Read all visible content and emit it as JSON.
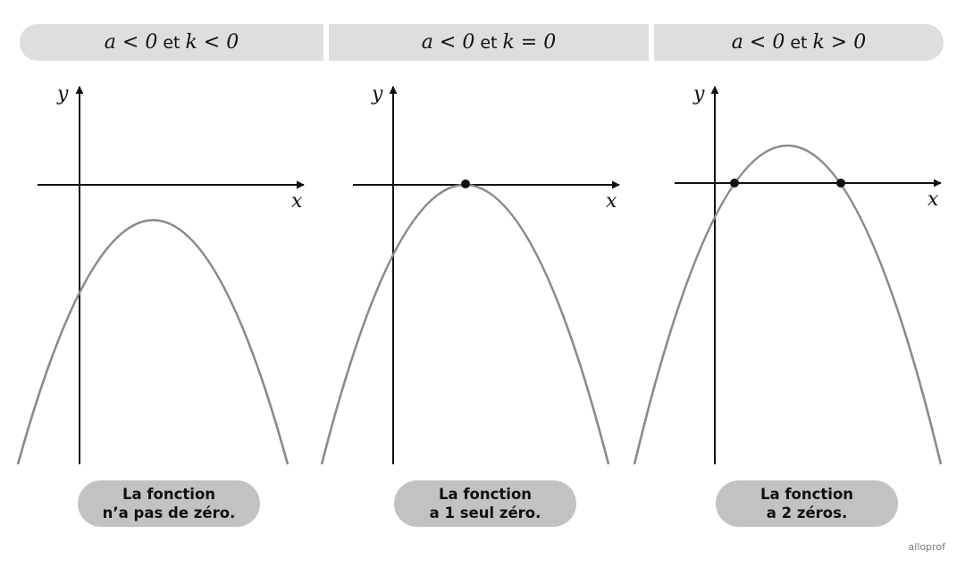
{
  "panels": [
    {
      "header": {
        "a_cond": "a < 0",
        "conj": "et",
        "k_cond": "k < 0"
      },
      "axis_labels": {
        "x": "x",
        "y": "y"
      },
      "caption": {
        "line1": "La fonction",
        "line2": "n’a pas de zéro."
      },
      "zeros": []
    },
    {
      "header": {
        "a_cond": "a < 0",
        "conj": "et",
        "k_cond": "k = 0"
      },
      "axis_labels": {
        "x": "x",
        "y": "y"
      },
      "caption": {
        "line1": "La fonction",
        "line2": "a 1 seul zéro."
      },
      "zeros": [
        "vertex"
      ]
    },
    {
      "header": {
        "a_cond": "a < 0",
        "conj": "et",
        "k_cond": "k > 0"
      },
      "axis_labels": {
        "x": "x",
        "y": "y"
      },
      "caption": {
        "line1": "La fonction",
        "line2": "a 2 zéros."
      },
      "zeros": [
        "left",
        "right"
      ]
    }
  ],
  "brand": "alloprof",
  "colors": {
    "header_bg": "#dedede",
    "caption_bg": "#c2c2c2",
    "curve": "#8a8a8a",
    "axis": "#111111"
  }
}
